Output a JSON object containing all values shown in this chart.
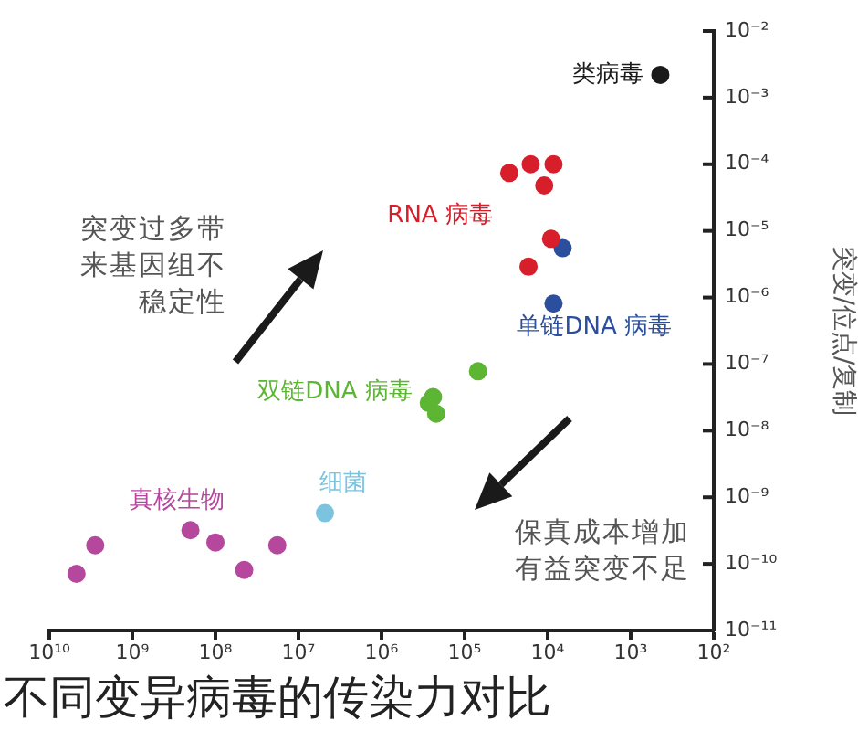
{
  "chart_data": {
    "type": "scatter",
    "title": "不同变异病毒的传染力对比",
    "ylabel": "突变/位点/复制",
    "annotations": [
      "突变过多带来基因组不稳定性",
      "保真成本增加有益突变不足"
    ],
    "log": "xy",
    "xlim": [
      10000000000.0,
      100
    ],
    "xticks": [
      {
        "value": 10000000000.0,
        "label": "10¹⁰"
      },
      {
        "value": 1000000000.0,
        "label": "10⁹"
      },
      {
        "value": 100000000.0,
        "label": "10⁸"
      },
      {
        "value": 10000000.0,
        "label": "10⁷"
      },
      {
        "value": 1000000.0,
        "label": "10⁶"
      },
      {
        "value": 100000.0,
        "label": "10⁵"
      },
      {
        "value": 10000.0,
        "label": "10⁴"
      },
      {
        "value": 1000,
        "label": "10³"
      },
      {
        "value": 100,
        "label": "10²"
      }
    ],
    "ylim": [
      1e-11,
      0.01
    ],
    "yticks": [
      {
        "value": 0.01,
        "label": "10⁻²"
      },
      {
        "value": 0.001,
        "label": "10⁻³"
      },
      {
        "value": 0.0001,
        "label": "10⁻⁴"
      },
      {
        "value": 1e-05,
        "label": "10⁻⁵"
      },
      {
        "value": 1e-06,
        "label": "10⁻⁶"
      },
      {
        "value": 1e-07,
        "label": "10⁻⁷"
      },
      {
        "value": 1e-08,
        "label": "10⁻⁸"
      },
      {
        "value": 1e-09,
        "label": "10⁻⁹"
      },
      {
        "value": 1e-10,
        "label": "10⁻¹⁰"
      },
      {
        "value": 1e-11,
        "label": "10⁻¹¹"
      }
    ],
    "grid": false,
    "legend": false,
    "marker": "circle",
    "series": [
      {
        "name": "类病毒",
        "color": "#1a1a1a",
        "x": [
          440
        ],
        "values": [
          0.0022
        ]
      },
      {
        "name": "RNA 病毒",
        "color": "#d71f2b",
        "x": [
          29000,
          16000,
          8500,
          11000,
          9100,
          17000
        ],
        "values": [
          7.4e-05,
          0.0001,
          0.0001,
          4.8e-05,
          7.6e-06,
          2.9e-06
        ]
      },
      {
        "name": "单链DNA 病毒",
        "color": "#2b4f9c",
        "x": [
          6600,
          8500
        ],
        "values": [
          5.5e-06,
          8.1e-07
        ]
      },
      {
        "name": "双链DNA 病毒",
        "color": "#5db534",
        "x": [
          69000,
          270000,
          240000,
          220000
        ],
        "values": [
          7.8e-08,
          2.6e-08,
          3.2e-08,
          1.8e-08
        ]
      },
      {
        "name": "细菌",
        "color": "#7cc3df",
        "x": [
          4800000.0
        ],
        "values": [
          5.8e-10
        ]
      },
      {
        "name": "真核生物",
        "color": "#b5489c",
        "x": [
          2800000000.0,
          4700000000.0,
          200000000.0,
          100000000.0,
          45000000.0,
          18000000.0
        ],
        "values": [
          1.9e-10,
          7.1e-11,
          3.2e-10,
          2.1e-10,
          8.1e-11,
          1.9e-10
        ]
      }
    ]
  }
}
